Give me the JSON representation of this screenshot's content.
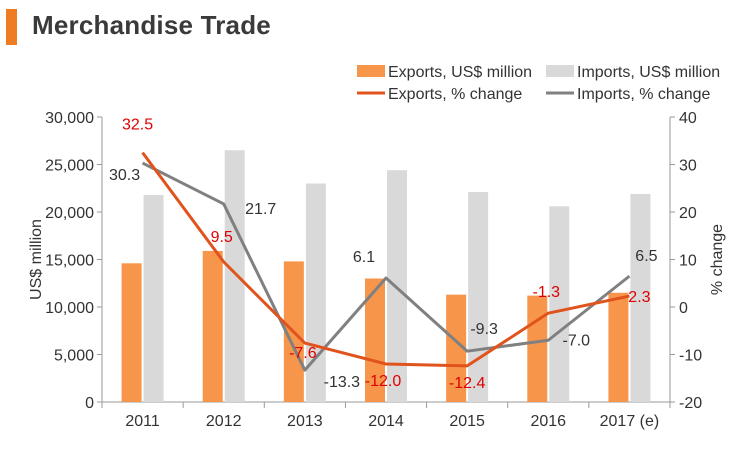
{
  "title": "Merchandise Trade",
  "colors": {
    "accent": "#f07c22",
    "exports_bar": "#f7964a",
    "imports_bar": "#d9d9d9",
    "exports_line": "#e0531c",
    "imports_line": "#808080",
    "exports_label": "#e00000",
    "imports_label": "#333333"
  },
  "chart_data": {
    "type": "bar",
    "title": "Merchandise Trade",
    "categories": [
      "2011",
      "2012",
      "2013",
      "2014",
      "2015",
      "2016",
      "2017 (e)"
    ],
    "ylabel": "US$ million",
    "y2label": "% change",
    "ylim": [
      0,
      30000
    ],
    "y2lim": [
      -20,
      40
    ],
    "yticks": [
      "0",
      "5,000",
      "10,000",
      "15,000",
      "20,000",
      "25,000",
      "30,000"
    ],
    "y2ticks": [
      "-20",
      "-10",
      "0",
      "10",
      "20",
      "30",
      "40"
    ],
    "grid": false,
    "legend_position": "top-right",
    "series": [
      {
        "name": "Exports, US$ million",
        "kind": "bar",
        "axis": "left",
        "values": [
          14600,
          15900,
          14800,
          13000,
          11300,
          11200,
          11500
        ]
      },
      {
        "name": "Imports, US$ million",
        "kind": "bar",
        "axis": "left",
        "values": [
          21800,
          26500,
          23000,
          24400,
          22100,
          20600,
          21900
        ]
      },
      {
        "name": "Exports, % change",
        "kind": "line",
        "axis": "right",
        "values": [
          32.5,
          9.5,
          -7.6,
          -12.0,
          -12.4,
          -1.3,
          2.3
        ],
        "labels": [
          "32.5",
          "9.5",
          "-7.6",
          "-12.0",
          "-12.4",
          "-1.3",
          "2.3"
        ]
      },
      {
        "name": "Imports, % change",
        "kind": "line",
        "axis": "right",
        "values": [
          30.3,
          21.7,
          -13.3,
          6.1,
          -9.3,
          -7.0,
          6.5
        ],
        "labels": [
          "30.3",
          "21.7",
          "-13.3",
          "6.1",
          "-9.3",
          "-7.0",
          "6.5"
        ]
      }
    ]
  }
}
